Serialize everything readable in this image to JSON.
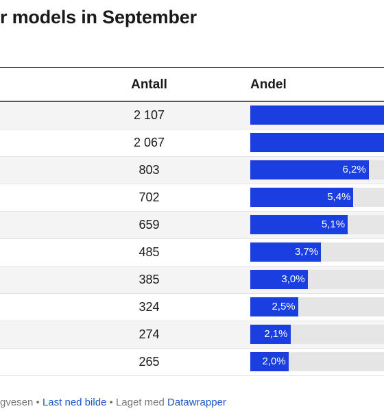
{
  "title": "r models in September",
  "chart_data": {
    "type": "table",
    "columns": [
      "",
      "Antall",
      "Andel"
    ],
    "rows": [
      {
        "antall": "2 107",
        "andel_label": "",
        "andel": 16.2
      },
      {
        "antall": "2 067",
        "andel_label": "",
        "andel": 15.9
      },
      {
        "antall": "803",
        "andel_label": "6,2%",
        "andel": 6.2
      },
      {
        "antall": "702",
        "andel_label": "5,4%",
        "andel": 5.4
      },
      {
        "antall": "659",
        "andel_label": "5,1%",
        "andel": 5.1
      },
      {
        "antall": "485",
        "andel_label": "3,7%",
        "andel": 3.7
      },
      {
        "antall": "385",
        "andel_label": "3,0%",
        "andel": 3.0
      },
      {
        "antall": "324",
        "andel_label": "2,5%",
        "andel": 2.5
      },
      {
        "antall": "274",
        "andel_label": "2,1%",
        "andel": 2.1
      },
      {
        "antall": "265",
        "andel_label": "2,0%",
        "andel": 2.0
      }
    ],
    "bar_max_percent": 7.0,
    "bar_color": "#1a3fe0",
    "track_color": "#e5e5e5"
  },
  "footer": {
    "source_fragment": "gvesen",
    "separator": " • ",
    "download_link": "Last ned bilde",
    "made_with": "Laget med",
    "tool_link": "Datawrapper"
  }
}
